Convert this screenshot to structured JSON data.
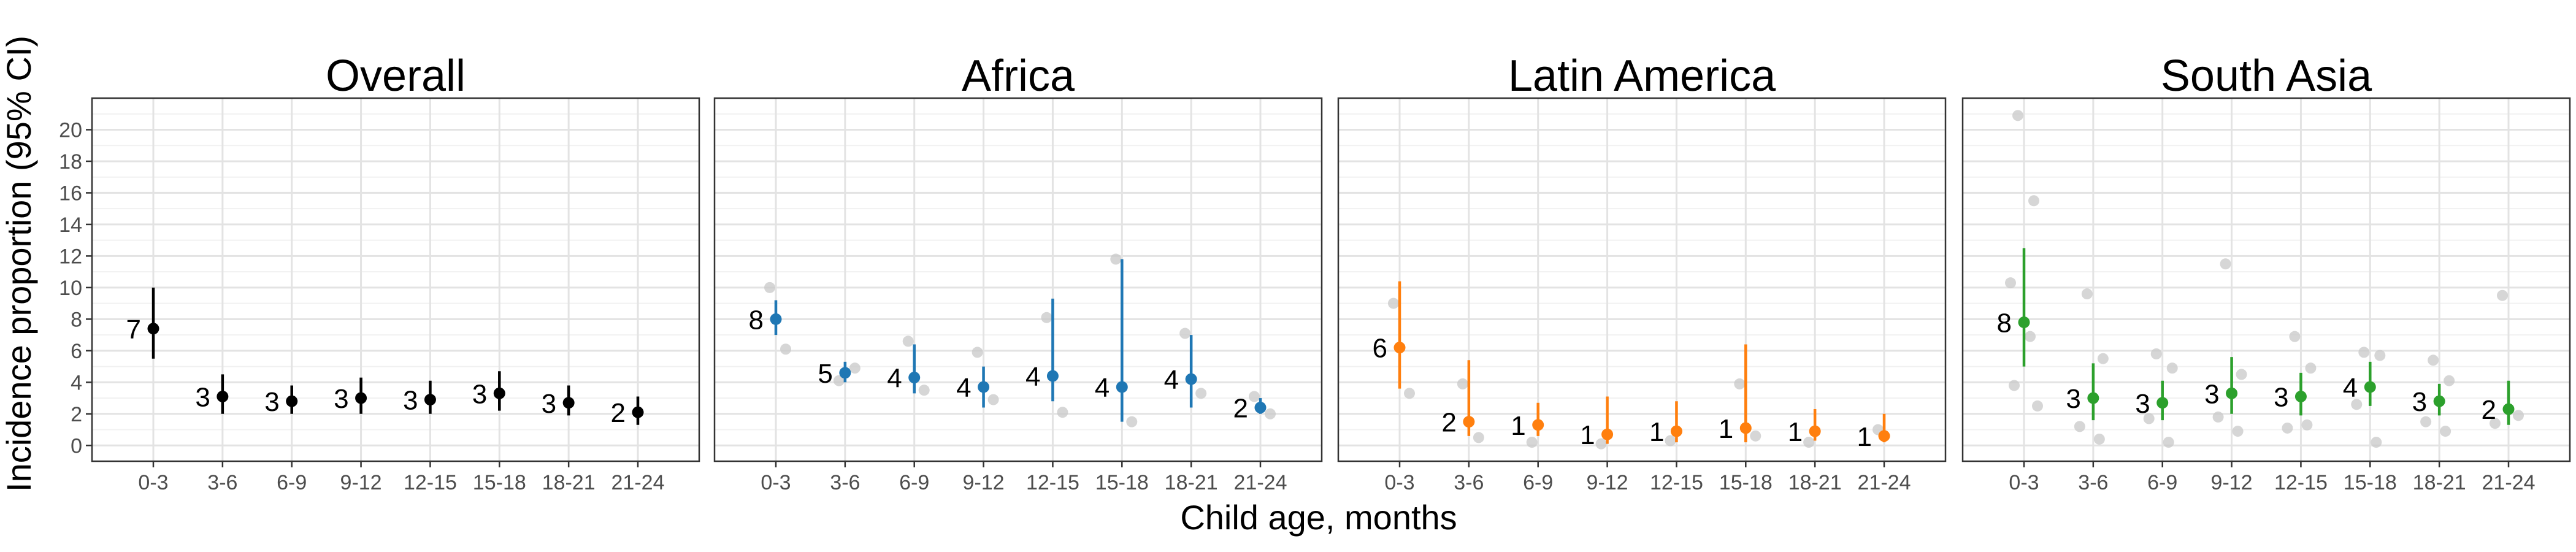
{
  "chart_data": {
    "type": "scatter",
    "subtype": "point-range faceted",
    "ylabel": "Incidence proportion (95% CI)",
    "xlabel": "Child age, months",
    "categories": [
      "0-3",
      "3-6",
      "6-9",
      "9-12",
      "12-15",
      "15-18",
      "18-21",
      "21-24"
    ],
    "ylim": [
      -1,
      22
    ],
    "yticks": [
      0,
      2,
      4,
      6,
      8,
      10,
      12,
      14,
      16,
      18,
      20
    ],
    "grid": true,
    "legend": "none",
    "background_points_color": "#c8c8c8",
    "panels": [
      {
        "title": "Overall",
        "color": "#000000",
        "estimates": [
          7.4,
          3.1,
          2.8,
          3.0,
          2.9,
          3.3,
          2.7,
          2.1
        ],
        "ci_lower": [
          5.5,
          2.0,
          2.0,
          2.0,
          2.0,
          2.2,
          1.9,
          1.3
        ],
        "ci_upper": [
          10.0,
          4.5,
          3.8,
          4.3,
          4.1,
          4.7,
          3.8,
          3.1
        ],
        "counts": [
          "7",
          "3",
          "3",
          "3",
          "3",
          "3",
          "3",
          "2"
        ],
        "studies": [
          [],
          [],
          [],
          [],
          [],
          [],
          [],
          []
        ]
      },
      {
        "title": "Africa",
        "color": "#1f77b4",
        "estimates": [
          8.0,
          4.6,
          4.3,
          3.7,
          4.4,
          3.7,
          4.2,
          2.4
        ],
        "ci_lower": [
          7.0,
          4.0,
          3.3,
          2.4,
          2.8,
          1.5,
          2.4,
          2.0
        ],
        "ci_upper": [
          9.2,
          5.3,
          6.4,
          5.0,
          9.3,
          11.8,
          7.0,
          3.0
        ],
        "counts": [
          "8",
          "5",
          "4",
          "4",
          "4",
          "4",
          "4",
          "2"
        ],
        "studies": [
          [
            10.0,
            6.1
          ],
          [
            4.1,
            4.9
          ],
          [
            6.6,
            3.5
          ],
          [
            5.9,
            2.9
          ],
          [
            8.1,
            2.1
          ],
          [
            11.8,
            1.5
          ],
          [
            7.1,
            3.3
          ],
          [
            3.1,
            2.0
          ]
        ]
      },
      {
        "title": "Latin America",
        "color": "#ff7f0e",
        "estimates": [
          6.2,
          1.5,
          1.3,
          0.7,
          0.9,
          1.1,
          0.9,
          0.6
        ],
        "ci_lower": [
          3.6,
          0.6,
          0.6,
          0.1,
          0.2,
          0.2,
          0.3,
          0.2
        ],
        "ci_upper": [
          10.4,
          5.4,
          2.7,
          3.1,
          2.8,
          6.4,
          2.3,
          2.0
        ],
        "counts": [
          "6",
          "2",
          "1",
          "1",
          "1",
          "1",
          "1",
          "1"
        ],
        "studies": [
          [
            9.0,
            3.3
          ],
          [
            3.9,
            0.5
          ],
          [
            0.2
          ],
          [
            0.1
          ],
          [
            0.3
          ],
          [
            3.9,
            0.6
          ],
          [
            0.2
          ],
          [
            1.0
          ]
        ]
      },
      {
        "title": "South Asia",
        "color": "#2ca02c",
        "estimates": [
          7.8,
          3.0,
          2.7,
          3.3,
          3.1,
          3.7,
          2.8,
          2.3
        ],
        "ci_lower": [
          5.0,
          1.6,
          1.6,
          2.0,
          1.9,
          2.5,
          1.9,
          1.3
        ],
        "ci_upper": [
          12.5,
          5.2,
          4.1,
          5.6,
          4.6,
          5.3,
          3.9,
          4.1
        ],
        "counts": [
          "8",
          "3",
          "3",
          "3",
          "3",
          "4",
          "3",
          "2"
        ],
        "studies": [
          [
            20.9,
            15.5,
            10.3,
            6.9,
            3.8,
            2.5
          ],
          [
            9.6,
            5.5,
            1.2,
            0.4
          ],
          [
            5.8,
            4.9,
            1.7,
            0.2
          ],
          [
            11.5,
            4.5,
            1.8,
            0.9
          ],
          [
            6.9,
            4.9,
            1.1,
            1.3
          ],
          [
            5.9,
            5.7,
            2.6,
            0.2
          ],
          [
            5.4,
            4.1,
            1.5,
            0.9
          ],
          [
            9.5,
            1.9,
            1.4
          ]
        ]
      }
    ]
  }
}
